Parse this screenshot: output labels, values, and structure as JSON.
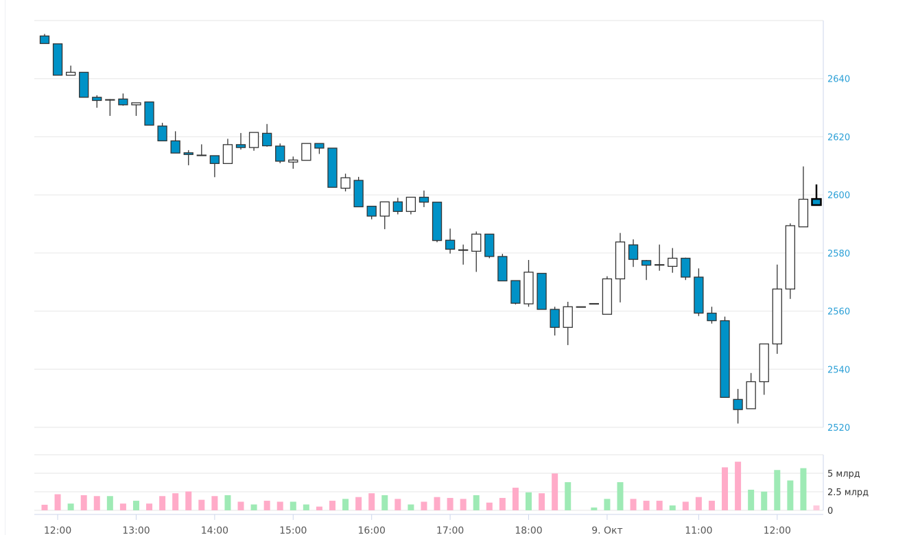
{
  "chart_data": {
    "type": "candlestick",
    "colors": {
      "down_fill": "#0092c7",
      "up_fill": "#ffffff",
      "border": "#333333",
      "volume_up": "#9eeab5",
      "volume_down": "#ffabc8",
      "volume_current": "#ffc9dd",
      "axis_label": "#2a9fd6"
    },
    "price_axis": {
      "ylim": [
        2520,
        2660
      ],
      "ticks": [
        2520,
        2540,
        2560,
        2580,
        2600,
        2620,
        2640
      ],
      "labels": [
        "2520",
        "2540",
        "2560",
        "2580",
        "2600",
        "2620",
        "2640"
      ],
      "grid": true,
      "position": "right"
    },
    "volume_axis": {
      "ylim": [
        0,
        7.5
      ],
      "ticks": [
        0,
        2.5,
        5
      ],
      "labels": [
        "0",
        "2.5 млрд",
        "5 млрд"
      ],
      "grid": true,
      "position": "right"
    },
    "x_ticks": [
      {
        "index": 1,
        "label": "12:00"
      },
      {
        "index": 7,
        "label": "13:00"
      },
      {
        "index": 13,
        "label": "14:00"
      },
      {
        "index": 19,
        "label": "15:00"
      },
      {
        "index": 25,
        "label": "16:00"
      },
      {
        "index": 31,
        "label": "17:00"
      },
      {
        "index": 37,
        "label": "18:00"
      },
      {
        "index": 43,
        "label": "9. Окт"
      },
      {
        "index": 50,
        "label": "11:00"
      },
      {
        "index": 56,
        "label": "12:00"
      }
    ],
    "ohlc": [
      [
        2654.7,
        2655.4,
        2652.1,
        2652.1
      ],
      [
        2652.0,
        2652.0,
        2641.2,
        2641.2
      ],
      [
        2641.2,
        2644.5,
        2641.2,
        2642.2
      ],
      [
        2642.2,
        2642.2,
        2633.6,
        2633.6
      ],
      [
        2633.6,
        2634.3,
        2630.0,
        2632.5
      ],
      [
        2632.7,
        2633.0,
        2627.2,
        2632.8
      ],
      [
        2633.0,
        2634.9,
        2630.7,
        2631.0
      ],
      [
        2631.0,
        2631.7,
        2627.2,
        2631.7
      ],
      [
        2632.0,
        2632.0,
        2624.0,
        2624.0
      ],
      [
        2623.7,
        2624.8,
        2618.6,
        2618.6
      ],
      [
        2618.6,
        2621.9,
        2614.4,
        2614.4
      ],
      [
        2614.5,
        2615.4,
        2610.2,
        2613.9
      ],
      [
        2613.7,
        2617.4,
        2613.5,
        2613.6
      ],
      [
        2613.5,
        2613.5,
        2606.1,
        2610.8
      ],
      [
        2610.8,
        2619.3,
        2610.8,
        2617.3
      ],
      [
        2617.3,
        2621.3,
        2615.6,
        2616.3
      ],
      [
        2616.3,
        2621.5,
        2615.2,
        2621.5
      ],
      [
        2621.2,
        2624.4,
        2616.6,
        2616.9
      ],
      [
        2616.8,
        2617.7,
        2610.9,
        2611.6
      ],
      [
        2611.3,
        2613.2,
        2609.0,
        2612.0
      ],
      [
        2611.9,
        2617.7,
        2611.9,
        2617.7
      ],
      [
        2617.7,
        2617.7,
        2614.1,
        2616.1
      ],
      [
        2616.1,
        2616.1,
        2602.6,
        2602.6
      ],
      [
        2602.3,
        2607.3,
        2601.2,
        2605.9
      ],
      [
        2605.0,
        2606.2,
        2595.9,
        2595.9
      ],
      [
        2596.1,
        2596.1,
        2591.6,
        2592.7
      ],
      [
        2592.7,
        2597.6,
        2588.2,
        2597.6
      ],
      [
        2597.6,
        2599.0,
        2593.3,
        2594.3
      ],
      [
        2594.3,
        2599.2,
        2593.3,
        2599.2
      ],
      [
        2599.2,
        2601.5,
        2595.8,
        2597.5
      ],
      [
        2597.5,
        2597.5,
        2583.7,
        2584.3
      ],
      [
        2584.4,
        2588.4,
        2579.8,
        2581.3
      ],
      [
        2581.1,
        2582.9,
        2576.0,
        2580.9
      ],
      [
        2580.6,
        2587.4,
        2573.5,
        2586.5
      ],
      [
        2586.5,
        2586.5,
        2578.2,
        2578.8
      ],
      [
        2578.8,
        2579.7,
        2570.4,
        2570.4
      ],
      [
        2570.5,
        2570.5,
        2562.3,
        2562.7
      ],
      [
        2562.5,
        2577.6,
        2561.5,
        2573.4
      ],
      [
        2573.0,
        2573.0,
        2560.6,
        2560.6
      ],
      [
        2560.6,
        2561.5,
        2551.6,
        2554.4
      ],
      [
        2554.4,
        2563.2,
        2548.3,
        2561.5
      ],
      [
        2561.5,
        2561.5,
        2561.5,
        2561.5
      ],
      [
        2562.5,
        2562.6,
        2562.5,
        2562.6
      ],
      [
        2558.9,
        2572.0,
        2558.9,
        2571.1
      ],
      [
        2571.1,
        2586.9,
        2563.0,
        2583.8
      ],
      [
        2582.8,
        2584.7,
        2575.2,
        2577.8
      ],
      [
        2577.4,
        2577.6,
        2570.7,
        2575.8
      ],
      [
        2576.0,
        2582.9,
        2573.9,
        2575.8
      ],
      [
        2575.4,
        2581.7,
        2573.2,
        2578.2
      ],
      [
        2578.2,
        2578.4,
        2570.7,
        2571.7
      ],
      [
        2571.7,
        2574.7,
        2558.3,
        2559.3
      ],
      [
        2559.3,
        2561.5,
        2555.7,
        2556.7
      ],
      [
        2556.7,
        2558.1,
        2530.3,
        2530.3
      ],
      [
        2529.6,
        2533.2,
        2521.3,
        2526.1
      ],
      [
        2526.4,
        2538.7,
        2526.4,
        2535.7
      ],
      [
        2535.7,
        2548.7,
        2531.2,
        2548.7
      ],
      [
        2548.7,
        2576.0,
        2545.3,
        2567.6
      ],
      [
        2567.6,
        2590.2,
        2564.2,
        2589.4
      ],
      [
        2589.0,
        2609.8,
        2589.0,
        2598.5
      ],
      [
        2598.6,
        2603.6,
        2596.5,
        2596.5
      ]
    ],
    "volume_mlrd": [
      0.75,
      2.17,
      0.91,
      2.04,
      1.92,
      1.92,
      0.91,
      1.29,
      0.91,
      1.92,
      2.3,
      2.55,
      1.42,
      1.92,
      2.04,
      1.16,
      0.79,
      1.29,
      1.16,
      1.16,
      0.79,
      0.5,
      1.29,
      1.54,
      1.79,
      2.3,
      2.04,
      1.54,
      0.79,
      1.16,
      1.79,
      1.67,
      1.54,
      2.04,
      1.04,
      1.67,
      3.05,
      2.42,
      2.3,
      4.97,
      3.8,
      0,
      0.38,
      1.54,
      3.8,
      1.54,
      1.29,
      1.29,
      0.66,
      1.16,
      1.79,
      1.29,
      5.8,
      6.56,
      2.78,
      2.53,
      5.44,
      4.03,
      5.69,
      0.66
    ]
  }
}
